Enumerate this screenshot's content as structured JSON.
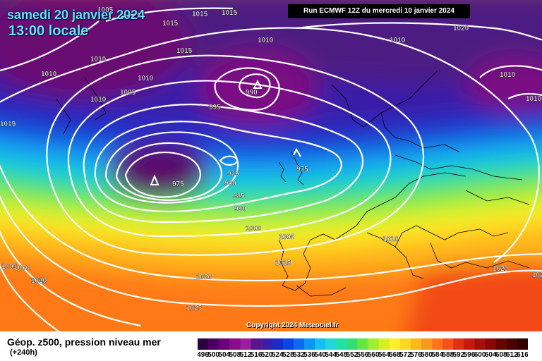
{
  "header": {
    "date": "samedi 20 janvier 2024",
    "local_time": "13:00 locale",
    "run_info": "Run ECMWF 12Z du mercredi 10 janvier 2024"
  },
  "footer": {
    "parameter": "Géop. z500, pression niveau mer",
    "lead_time": "(+240h)",
    "copyright": "Copyright 2024 Meteociel.fr"
  },
  "legend": {
    "values": [
      "496",
      "500",
      "504",
      "508",
      "512",
      "516",
      "520",
      "524",
      "528",
      "532",
      "536",
      "540",
      "544",
      "548",
      "552",
      "556",
      "560",
      "564",
      "568",
      "572",
      "576",
      "580",
      "584",
      "588",
      "592",
      "596",
      "600",
      "604",
      "608",
      "612",
      "616"
    ],
    "colors": [
      "#2b0040",
      "#4a005e",
      "#6b007a",
      "#8c0a8c",
      "#9b1ea0",
      "#5a1490",
      "#3a1da8",
      "#1c2ac8",
      "#0a46e6",
      "#0a6cf2",
      "#0a96f6",
      "#10c0f0",
      "#20d8d8",
      "#20e0a8",
      "#30e070",
      "#60e840",
      "#a0ee30",
      "#d8f020",
      "#fff028",
      "#ffd820",
      "#ffb818",
      "#ff9818",
      "#ff7418",
      "#f85018",
      "#e03014",
      "#c81810",
      "#a80c0c",
      "#880808",
      "#680404",
      "#480202",
      "#300000"
    ]
  },
  "isobar_labels": [
    "1005",
    "1015",
    "1015",
    "1015",
    "1010",
    "1010",
    "1015",
    "1020",
    "1010",
    "1010",
    "1010",
    "1010",
    "1005",
    "1010",
    "1010",
    "990",
    "995",
    "1010",
    "1015",
    "975",
    "975",
    "975",
    "980",
    "985",
    "990",
    "1000",
    "1005",
    "1010",
    "1015",
    "1020",
    "1020",
    "1025",
    "1000",
    "1010",
    "1005",
    "1010",
    "102",
    "995"
  ]
}
